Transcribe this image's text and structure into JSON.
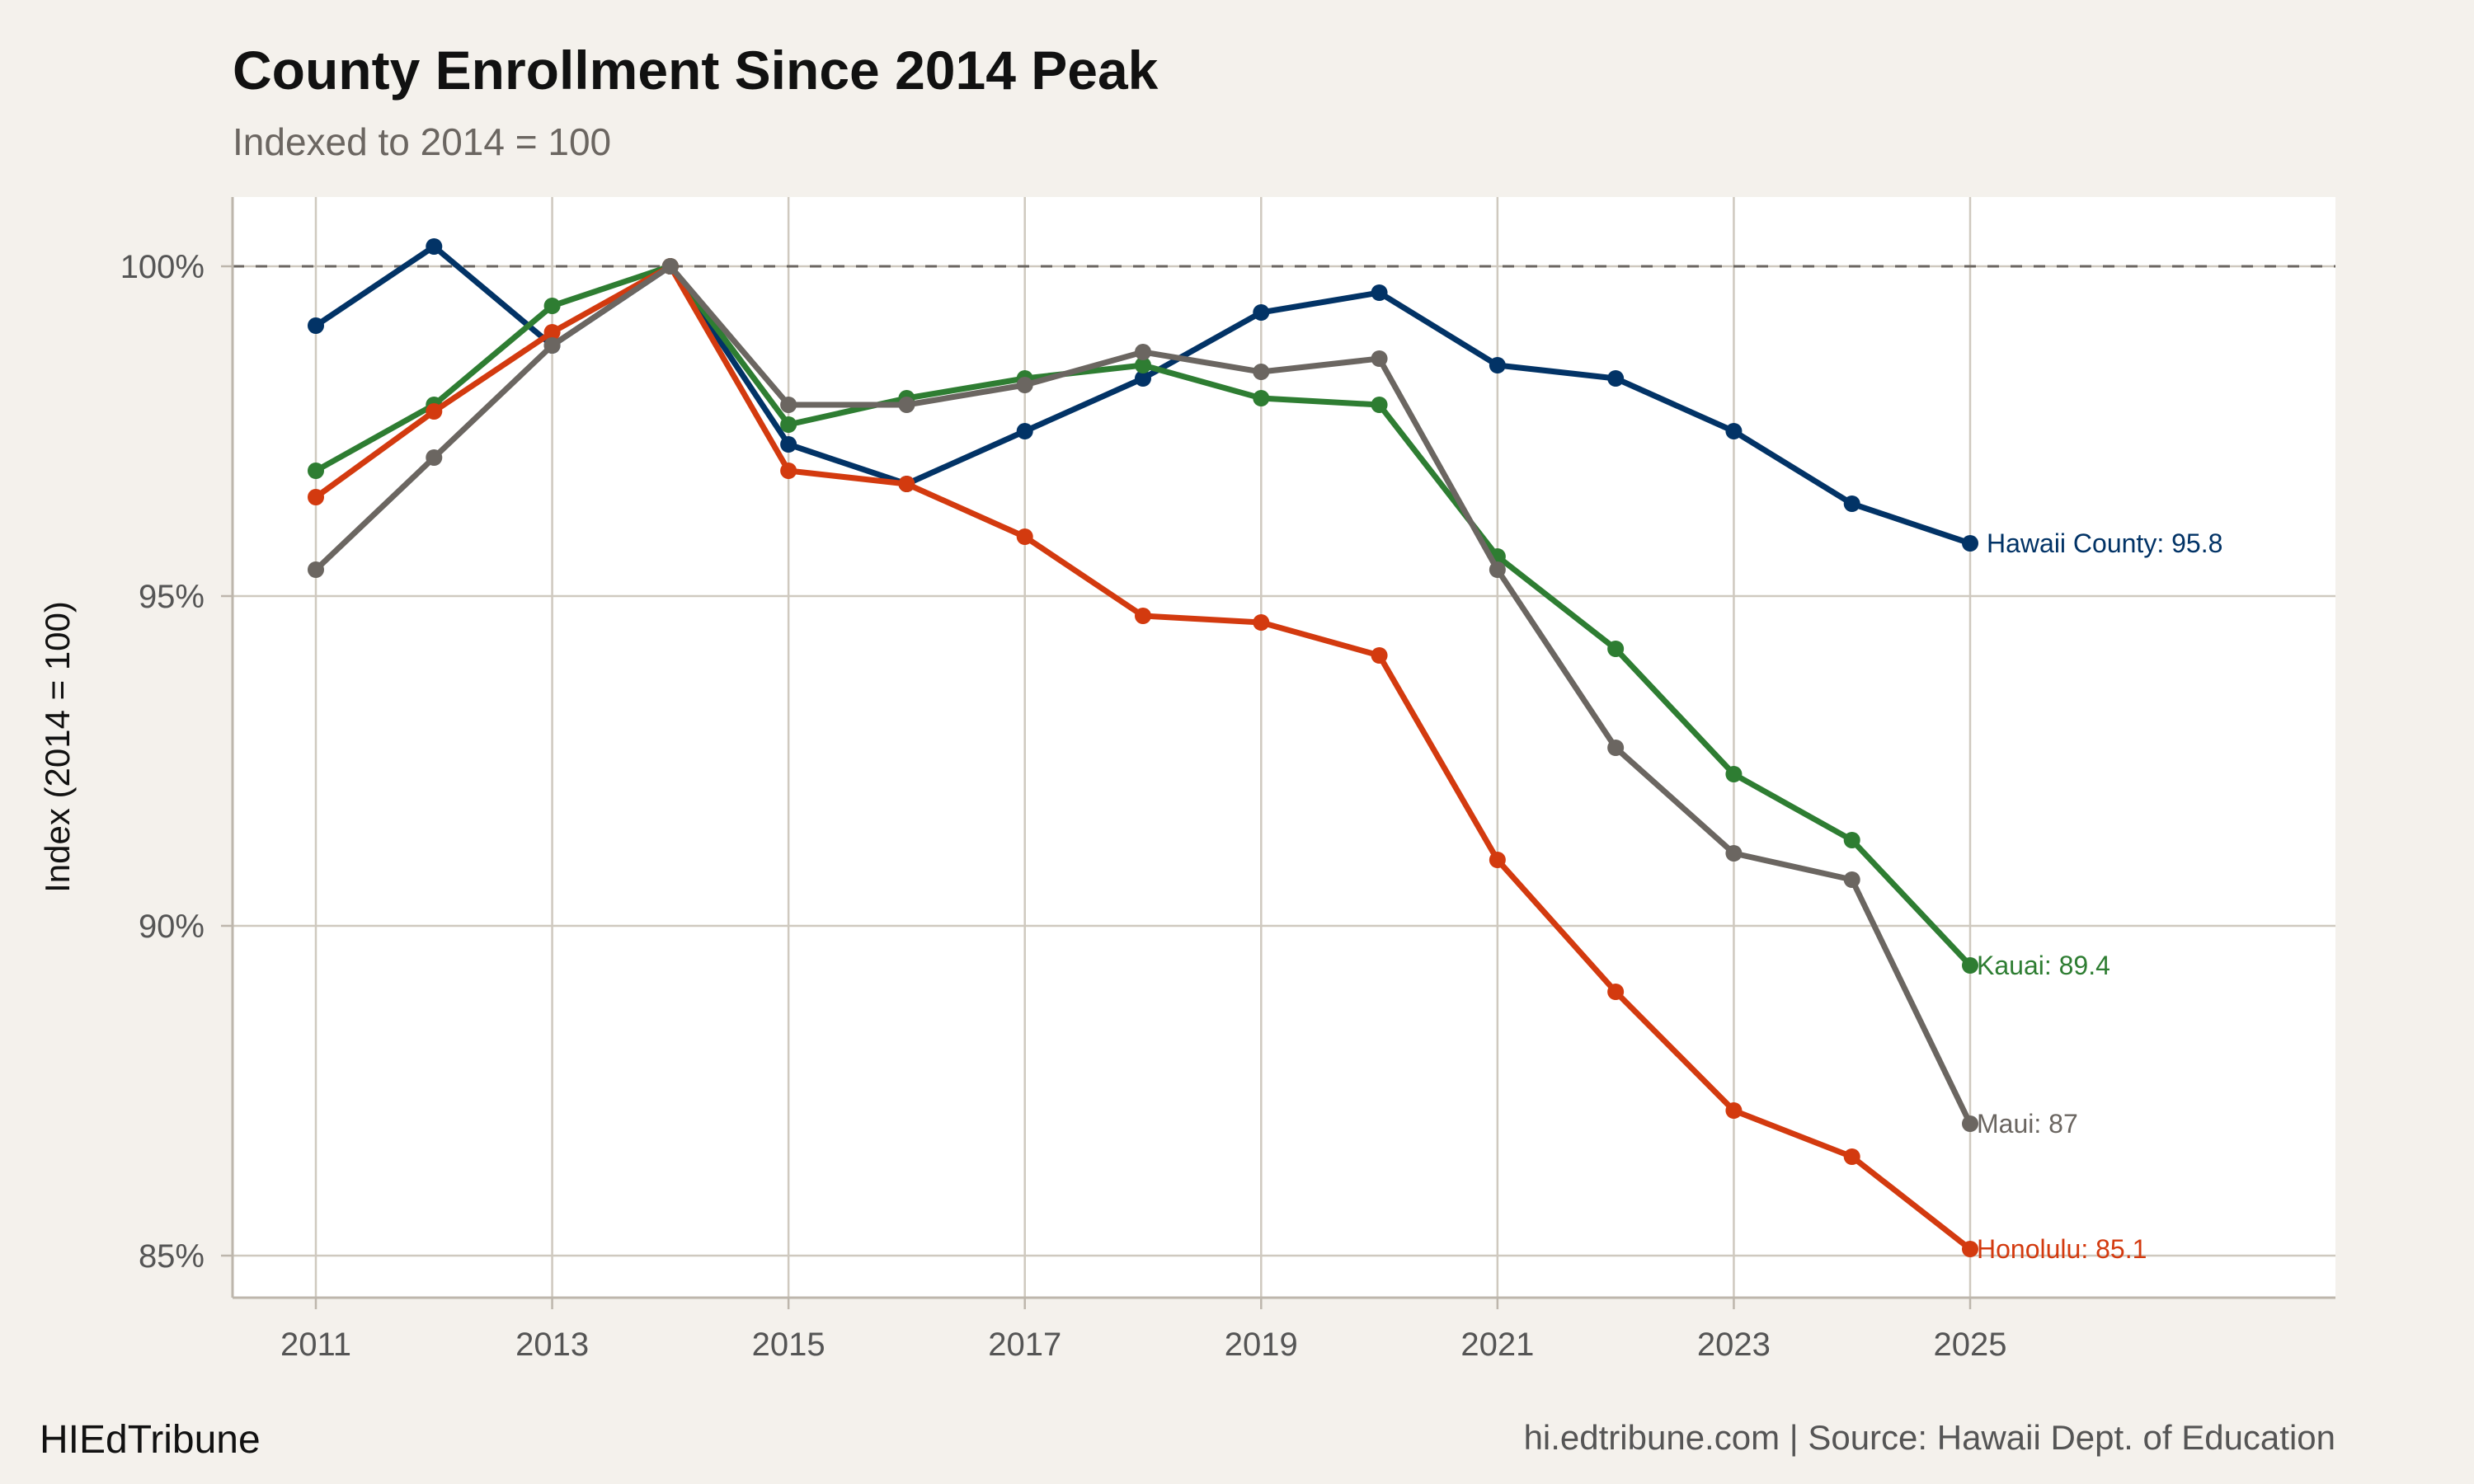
{
  "chart_data": {
    "type": "line",
    "title": "County Enrollment Since 2014 Peak",
    "subtitle": "Indexed to 2014 = 100",
    "xlabel": "",
    "ylabel": "Index (2014 = 100)",
    "x": [
      2011,
      2012,
      2013,
      2014,
      2015,
      2016,
      2017,
      2018,
      2019,
      2020,
      2021,
      2022,
      2023,
      2024,
      2025
    ],
    "xticks": [
      "2011",
      "2013",
      "2015",
      "2017",
      "2019",
      "2021",
      "2023",
      "2025"
    ],
    "yticks": [
      "85%",
      "90%",
      "95%",
      "100%"
    ],
    "ylim": [
      84.4,
      101.0
    ],
    "xlim": [
      2010.3,
      2028.1
    ],
    "reference_line": 100,
    "grid": true,
    "series": [
      {
        "name": "Hawaii County",
        "color": "#023366",
        "end_label": "Hawaii County: 95.8",
        "values": [
          99.1,
          100.3,
          98.8,
          100,
          97.3,
          96.7,
          97.5,
          98.3,
          99.3,
          99.6,
          98.5,
          98.3,
          97.5,
          96.4,
          95.8
        ]
      },
      {
        "name": "Kauai",
        "color": "#2e7d32",
        "end_label": "Kauai: 89.4",
        "values": [
          96.9,
          97.9,
          99.4,
          100,
          97.6,
          98.0,
          98.3,
          98.5,
          98.0,
          97.9,
          95.6,
          94.2,
          92.3,
          91.3,
          89.4
        ]
      },
      {
        "name": "Honolulu",
        "color": "#d33a0f",
        "end_label": "Honolulu: 85.1",
        "values": [
          96.5,
          97.8,
          99.0,
          100,
          96.9,
          96.7,
          95.9,
          94.7,
          94.6,
          94.1,
          91.0,
          89.0,
          87.2,
          86.5,
          85.1
        ]
      },
      {
        "name": "Maui",
        "color": "#6b6661",
        "end_label": "Maui: 87",
        "values": [
          95.4,
          97.1,
          98.8,
          100,
          97.9,
          97.9,
          98.2,
          98.7,
          98.4,
          98.6,
          95.4,
          92.7,
          91.1,
          90.7,
          87.0
        ]
      }
    ]
  },
  "footer": {
    "brand": "HIEdTribune",
    "source": "hi.edtribune.com | Source: Hawaii Dept. of Education"
  }
}
